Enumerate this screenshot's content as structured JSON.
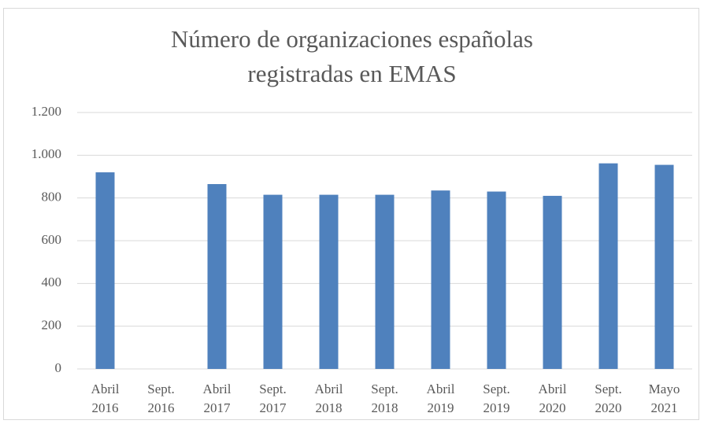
{
  "chart_data": {
    "type": "bar",
    "title": "Número de organizaciones españolas registradas en EMAS",
    "categories": [
      "Abril 2016",
      "Sept. 2016",
      "Abril 2017",
      "Sept. 2017",
      "Abril 2018",
      "Sept. 2018",
      "Abril 2019",
      "Sept. 2019",
      "Abril 2020",
      "Sept. 2020",
      "Mayo 2021"
    ],
    "values": [
      920,
      null,
      865,
      815,
      815,
      815,
      835,
      830,
      810,
      962,
      955
    ],
    "color": "#4f81bd",
    "ylim": [
      0,
      1200
    ],
    "yticks": [
      0,
      200,
      400,
      600,
      800,
      {
        "value": 1000,
        "label": "1.000"
      },
      {
        "value": 1200,
        "label": "1.200"
      }
    ],
    "grid": true
  }
}
